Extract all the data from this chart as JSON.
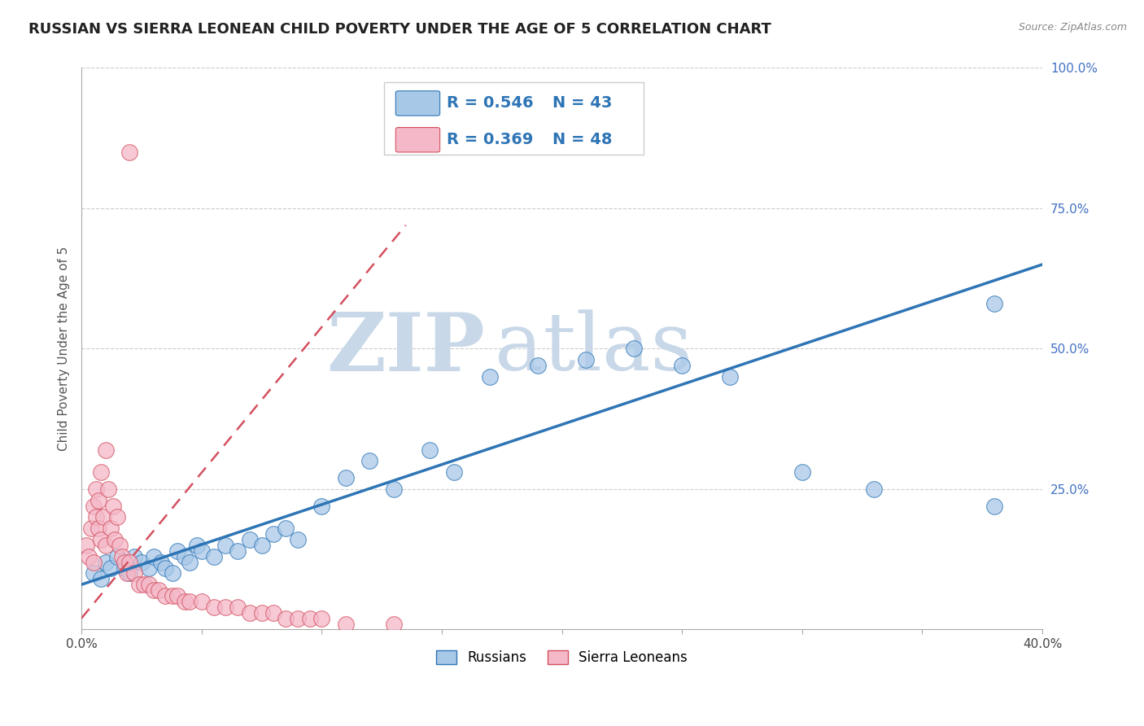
{
  "title": "RUSSIAN VS SIERRA LEONEAN CHILD POVERTY UNDER THE AGE OF 5 CORRELATION CHART",
  "source_text": "Source: ZipAtlas.com",
  "ylabel": "Child Poverty Under the Age of 5",
  "xlim": [
    0.0,
    0.4
  ],
  "ylim": [
    0.0,
    1.0
  ],
  "legend_R1": "0.546",
  "legend_N1": "43",
  "legend_R2": "0.369",
  "legend_N2": "48",
  "color_russian": "#a8c8e8",
  "color_sl": "#f4b8c8",
  "color_russian_line": "#2e75b6",
  "color_sl_line": "#d45060",
  "watermark_zip": "ZIP",
  "watermark_atlas": "atlas",
  "watermark_color": "#c8d8e8",
  "title_fontsize": 13,
  "label_fontsize": 11,
  "tick_fontsize": 11,
  "legend_fontsize": 13,
  "russian_x": [
    0.005,
    0.008,
    0.01,
    0.012,
    0.015,
    0.018,
    0.02,
    0.022,
    0.025,
    0.028,
    0.03,
    0.033,
    0.035,
    0.038,
    0.04,
    0.043,
    0.045,
    0.048,
    0.05,
    0.055,
    0.06,
    0.065,
    0.07,
    0.075,
    0.08,
    0.085,
    0.09,
    0.1,
    0.11,
    0.12,
    0.13,
    0.145,
    0.155,
    0.17,
    0.19,
    0.21,
    0.23,
    0.25,
    0.27,
    0.3,
    0.33,
    0.38,
    0.38
  ],
  "russian_y": [
    0.1,
    0.09,
    0.12,
    0.11,
    0.13,
    0.11,
    0.1,
    0.13,
    0.12,
    0.11,
    0.13,
    0.12,
    0.11,
    0.1,
    0.14,
    0.13,
    0.12,
    0.15,
    0.14,
    0.13,
    0.15,
    0.14,
    0.16,
    0.15,
    0.17,
    0.18,
    0.16,
    0.22,
    0.27,
    0.3,
    0.25,
    0.32,
    0.28,
    0.45,
    0.47,
    0.48,
    0.5,
    0.47,
    0.45,
    0.28,
    0.25,
    0.22,
    0.58
  ],
  "sl_x": [
    0.002,
    0.003,
    0.004,
    0.005,
    0.005,
    0.006,
    0.006,
    0.007,
    0.007,
    0.008,
    0.008,
    0.009,
    0.01,
    0.01,
    0.011,
    0.012,
    0.013,
    0.014,
    0.015,
    0.016,
    0.017,
    0.018,
    0.019,
    0.02,
    0.022,
    0.024,
    0.026,
    0.028,
    0.03,
    0.032,
    0.035,
    0.038,
    0.04,
    0.043,
    0.045,
    0.05,
    0.055,
    0.06,
    0.065,
    0.07,
    0.075,
    0.08,
    0.085,
    0.09,
    0.095,
    0.1,
    0.11,
    0.13
  ],
  "sl_y": [
    0.15,
    0.13,
    0.18,
    0.12,
    0.22,
    0.2,
    0.25,
    0.18,
    0.23,
    0.16,
    0.28,
    0.2,
    0.15,
    0.32,
    0.25,
    0.18,
    0.22,
    0.16,
    0.2,
    0.15,
    0.13,
    0.12,
    0.1,
    0.12,
    0.1,
    0.08,
    0.08,
    0.08,
    0.07,
    0.07,
    0.06,
    0.06,
    0.06,
    0.05,
    0.05,
    0.05,
    0.04,
    0.04,
    0.04,
    0.03,
    0.03,
    0.03,
    0.02,
    0.02,
    0.02,
    0.02,
    0.01,
    0.01
  ],
  "sl_outlier_x": [
    0.02
  ],
  "sl_outlier_y": [
    0.85
  ]
}
